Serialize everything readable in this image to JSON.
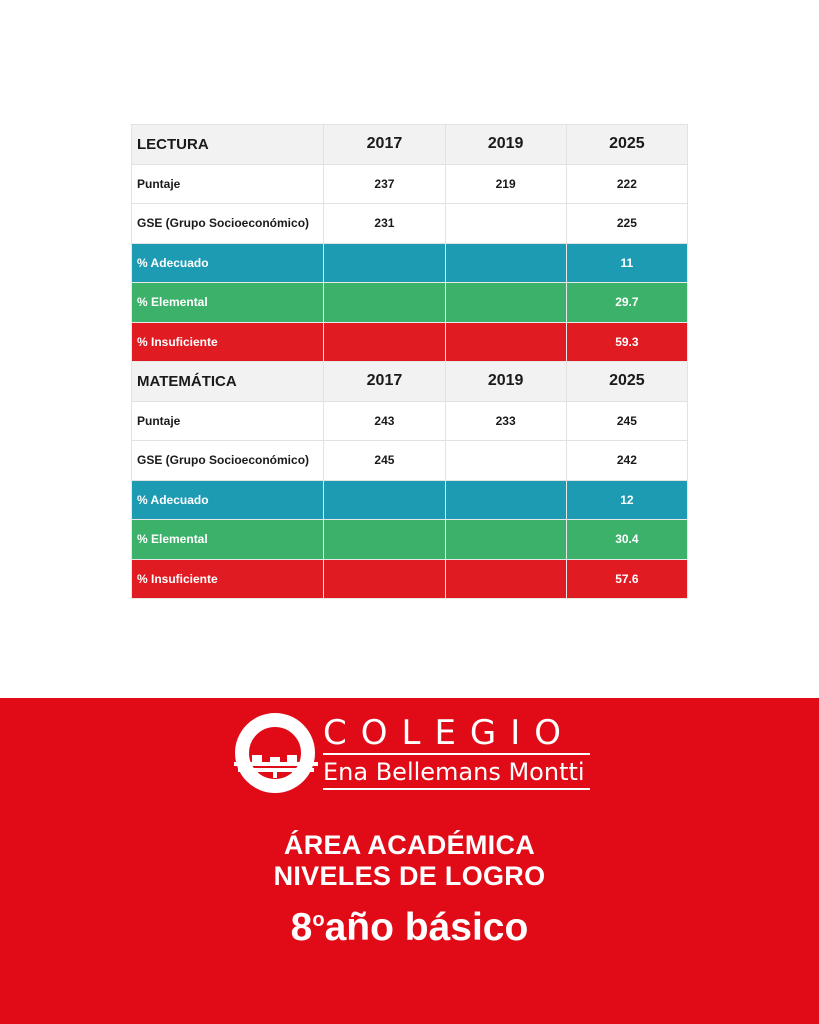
{
  "tables": [
    {
      "subject": "LECTURA",
      "years": [
        "2017",
        "2019",
        "2025"
      ],
      "rows": [
        {
          "label": "Puntaje",
          "values": [
            "237",
            "219",
            "222"
          ]
        },
        {
          "label": "GSE (Grupo Socioeconómico)",
          "values": [
            "231",
            "",
            "225"
          ]
        },
        {
          "label": "% Adecuado",
          "values": [
            "",
            "",
            "11"
          ]
        },
        {
          "label": "% Elemental",
          "values": [
            "",
            "",
            "29.7"
          ]
        },
        {
          "label": "% Insuficiente",
          "values": [
            "",
            "",
            "59.3"
          ]
        }
      ]
    },
    {
      "subject": "MATEMÁTICA",
      "years": [
        "2017",
        "2019",
        "2025"
      ],
      "rows": [
        {
          "label": "Puntaje",
          "values": [
            "243",
            "233",
            "245"
          ]
        },
        {
          "label": "GSE (Grupo Socioeconómico)",
          "values": [
            "245",
            "",
            "242"
          ]
        },
        {
          "label": "% Adecuado",
          "values": [
            "",
            "",
            "12"
          ]
        },
        {
          "label": "% Elemental",
          "values": [
            "",
            "",
            "30.4"
          ]
        },
        {
          "label": "% Insuficiente",
          "values": [
            "",
            "",
            "57.6"
          ]
        }
      ]
    }
  ],
  "colors": {
    "adecuado": "#1d9bb3",
    "elemental": "#3cb16a",
    "insuficiente": "#e11b22",
    "banner": "#e10a17"
  },
  "logo": {
    "word": "COLEGIO",
    "name": "Ena Bellemans Montti",
    "icon": "school-emblem-icon"
  },
  "heading": {
    "line1": "ÁREA ACADÉMICA",
    "line2": "NIVELES DE LOGRO",
    "grade_number": "8",
    "grade_ordinal": "o",
    "grade_text": "año básico"
  }
}
